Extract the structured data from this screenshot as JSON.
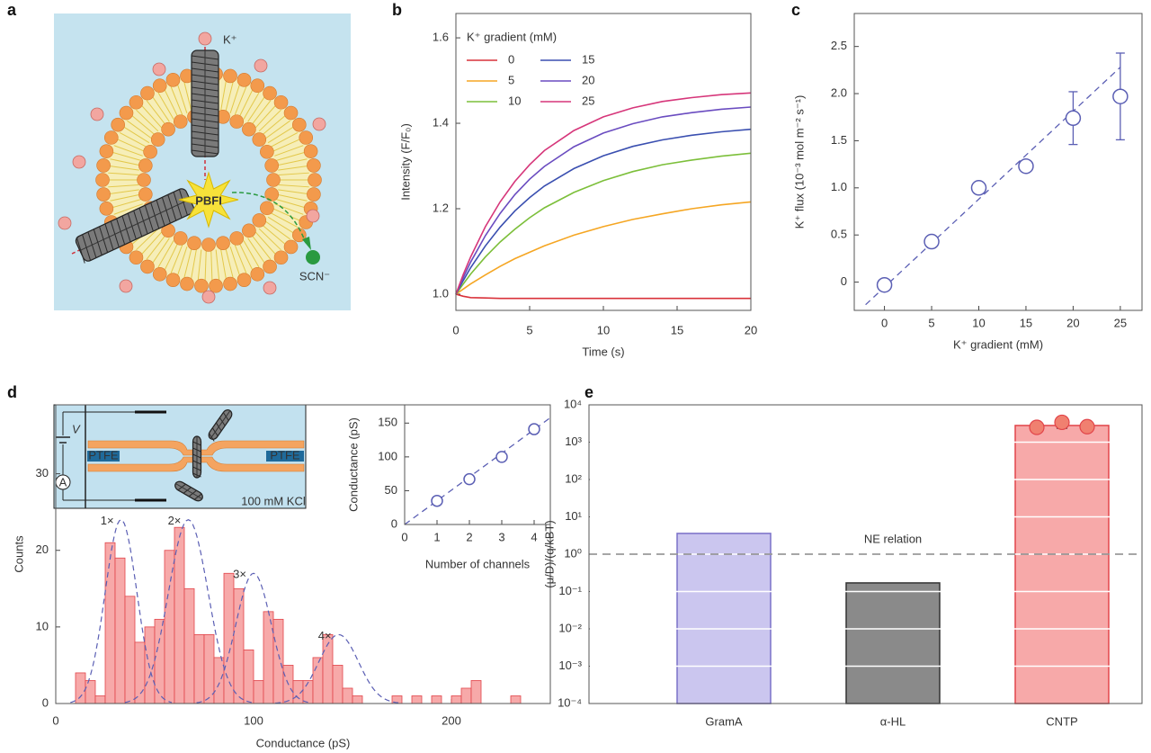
{
  "panel_labels": [
    "a",
    "b",
    "c",
    "d",
    "e"
  ],
  "schematic_a": {
    "labels": [
      "K⁺",
      "PBFI",
      "SCN⁻"
    ]
  },
  "schematic_d": {
    "labels": [
      "V",
      "A",
      "PTFE",
      "PTFE",
      "100 mM KCl"
    ]
  },
  "chart_data": [
    {
      "type": "line",
      "x": [
        0,
        0.5,
        1,
        2,
        3,
        4,
        5,
        6,
        8,
        10,
        12,
        14,
        16,
        18,
        20
      ],
      "series": [
        {
          "name": "0",
          "color": "#d9323a",
          "values": [
            1,
            0.995,
            0.992,
            0.991,
            0.99,
            0.99,
            0.99,
            0.99,
            0.99,
            0.99,
            0.99,
            0.99,
            0.99,
            0.99,
            0.99
          ]
        },
        {
          "name": "5",
          "color": "#f5a623",
          "values": [
            1,
            1.012,
            1.024,
            1.045,
            1.065,
            1.083,
            1.098,
            1.113,
            1.138,
            1.158,
            1.175,
            1.188,
            1.2,
            1.209,
            1.216
          ]
        },
        {
          "name": "10",
          "color": "#7cbf3a",
          "values": [
            1,
            1.024,
            1.047,
            1.087,
            1.122,
            1.152,
            1.179,
            1.202,
            1.238,
            1.266,
            1.287,
            1.303,
            1.314,
            1.323,
            1.33
          ]
        },
        {
          "name": "15",
          "color": "#3a4fb0",
          "values": [
            1,
            1.032,
            1.062,
            1.113,
            1.157,
            1.195,
            1.226,
            1.253,
            1.294,
            1.324,
            1.346,
            1.361,
            1.372,
            1.38,
            1.386
          ]
        },
        {
          "name": "20",
          "color": "#6a4cc0",
          "values": [
            1,
            1.039,
            1.075,
            1.137,
            1.189,
            1.233,
            1.269,
            1.299,
            1.345,
            1.377,
            1.399,
            1.415,
            1.425,
            1.433,
            1.438
          ]
        },
        {
          "name": "25",
          "color": "#d6367a",
          "values": [
            1,
            1.046,
            1.087,
            1.158,
            1.216,
            1.264,
            1.303,
            1.336,
            1.383,
            1.415,
            1.436,
            1.451,
            1.46,
            1.467,
            1.471
          ]
        }
      ],
      "xlim": [
        0,
        20
      ],
      "ylim": [
        0.962,
        1.657
      ],
      "xticks": [
        0,
        5,
        10,
        15,
        20
      ],
      "yticks": [
        {
          "value": 1,
          "label": "1.0"
        },
        1.2,
        1.4,
        1.6
      ],
      "xlabel": "Time (s)",
      "ylabel": "Intensity (F/F₀)",
      "legend_title": "K⁺ gradient (mM)",
      "legend": "upper left"
    },
    {
      "type": "scatter",
      "x": [
        0,
        5,
        10,
        15,
        20,
        25
      ],
      "values": [
        -0.03,
        0.43,
        1.0,
        1.23,
        1.74,
        1.97
      ],
      "errors": [
        null,
        null,
        null,
        null,
        0.28,
        0.46
      ],
      "color": "#5b5fb4",
      "fit": {
        "x": [
          -2,
          25
        ],
        "values": [
          -0.24,
          2.28
        ]
      },
      "xlim": [
        -3.2,
        27.3
      ],
      "ylim": [
        -0.3,
        2.85
      ],
      "xticks": [
        0,
        5,
        10,
        15,
        20,
        25
      ],
      "yticks": [
        0,
        0.5,
        {
          "value": 1,
          "label": "1.0"
        },
        1.5,
        {
          "value": 2,
          "label": "2.0"
        },
        2.5
      ],
      "xlabel": "K⁺ gradient (mM)",
      "ylabel": "K⁺ flux (10⁻³ mol m⁻² s⁻¹)"
    },
    {
      "type": "histogram",
      "bins": [
        10,
        15,
        20,
        25,
        30,
        35,
        40,
        45,
        50,
        55,
        60,
        65,
        70,
        75,
        80,
        85,
        90,
        95,
        100,
        105,
        110,
        115,
        120,
        125,
        130,
        135,
        140,
        145,
        150,
        155,
        160,
        165,
        170,
        175,
        180,
        185,
        190,
        195,
        200,
        205,
        210,
        215,
        220,
        225,
        230,
        235,
        240
      ],
      "counts": [
        4,
        3,
        1,
        21,
        19,
        14,
        8,
        10,
        11,
        20,
        23,
        15,
        9,
        9,
        6,
        17,
        15,
        7,
        3,
        12,
        11,
        5,
        3,
        3,
        6,
        9,
        5,
        2,
        1,
        0,
        0,
        0,
        1,
        0,
        1,
        0,
        1,
        0,
        1,
        2,
        3,
        0,
        0,
        0,
        1,
        0
      ],
      "color": "#f7a9a9",
      "edge_color": "#e2454a",
      "fits": [
        {
          "label": "1×",
          "mean": 33,
          "sd": 8,
          "amplitude": 24
        },
        {
          "label": "2×",
          "mean": 67,
          "sd": 10,
          "amplitude": 24
        },
        {
          "label": "3×",
          "mean": 100,
          "sd": 9,
          "amplitude": 17
        },
        {
          "label": "4×",
          "mean": 143,
          "sd": 10,
          "amplitude": 9
        }
      ],
      "fit_color": "#5b5fb4",
      "xlim": [
        0,
        250
      ],
      "ylim": [
        0,
        39
      ],
      "xticks": [
        0,
        100,
        200
      ],
      "yticks": [
        0,
        10,
        20,
        30
      ],
      "xlabel": "Conductance (pS)",
      "ylabel": "Counts"
    },
    {
      "type": "scatter",
      "x": [
        1,
        2,
        3,
        4
      ],
      "values": [
        35,
        67,
        100,
        141
      ],
      "color": "#5b5fb4",
      "fit": {
        "x": [
          0,
          4.5
        ],
        "values": [
          0,
          158
        ]
      },
      "xlim": [
        0,
        4.5
      ],
      "ylim": [
        0,
        177
      ],
      "xticks": [
        0,
        1,
        2,
        3,
        4
      ],
      "yticks": [
        0,
        50,
        100,
        150
      ],
      "xlabel": "Number of channels",
      "ylabel": "Conductance (pS)"
    },
    {
      "type": "bar",
      "categories": [
        "GramA",
        "α-HL",
        "CNTP"
      ],
      "values": [
        3.6,
        0.17,
        2800
      ],
      "errors": [
        null,
        null,
        450
      ],
      "points": [
        [],
        [],
        [
          2500,
          3400,
          2600
        ]
      ],
      "colors": [
        "#cbc6ef",
        "#8a8a8a",
        "#f7a9a9"
      ],
      "edge_colors": [
        "#7a70c8",
        "#333333",
        "#e2454a"
      ],
      "point_color": "#f08070",
      "log_y": true,
      "grid": true,
      "ylim": [
        0.0001,
        10000
      ],
      "yticks": [
        {
          "value": 10000,
          "label": "10⁴"
        },
        {
          "value": 1000,
          "label": "10³"
        },
        {
          "value": 100,
          "label": "10²"
        },
        {
          "value": 10,
          "label": "10¹"
        },
        {
          "value": 1,
          "label": "10⁰"
        },
        {
          "value": 0.1,
          "label": "10⁻¹"
        },
        {
          "value": 0.01,
          "label": "10⁻²"
        },
        {
          "value": 0.001,
          "label": "10⁻³"
        },
        {
          "value": 0.0001,
          "label": "10⁻⁴"
        }
      ],
      "reference_line": {
        "value": 1,
        "label": "NE relation"
      },
      "ylabel": "(μ/D)/(q/kBT)"
    }
  ]
}
